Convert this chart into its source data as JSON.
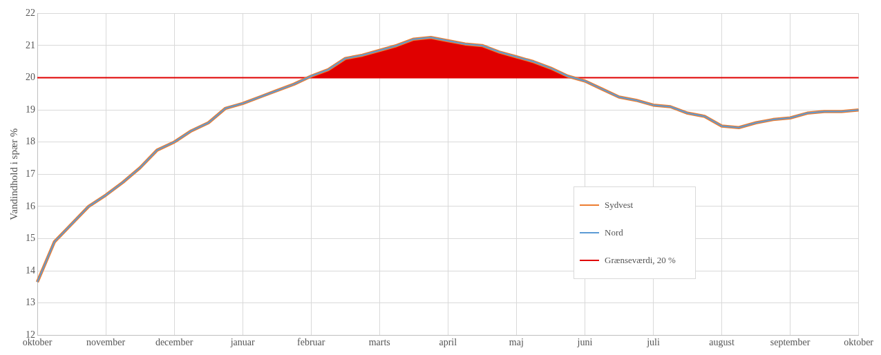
{
  "chart_data": {
    "type": "line",
    "ylabel": "Vandindhold i spær %",
    "categories": [
      "oktober",
      null,
      null,
      null,
      "november",
      null,
      null,
      null,
      "december",
      null,
      null,
      null,
      "januar",
      null,
      null,
      null,
      "februar",
      null,
      null,
      null,
      "marts",
      null,
      null,
      null,
      "april",
      null,
      null,
      null,
      "maj",
      null,
      null,
      null,
      "juni",
      null,
      null,
      null,
      "juli",
      null,
      null,
      null,
      "august",
      null,
      null,
      null,
      "september",
      null,
      null,
      null,
      "oktober"
    ],
    "series": [
      {
        "name": "Sydvest",
        "color": "#ed7d31",
        "values": [
          13.65,
          14.9,
          15.45,
          16.0,
          16.35,
          16.75,
          17.2,
          17.75,
          18.0,
          18.35,
          18.6,
          19.05,
          19.2,
          19.4,
          19.6,
          19.8,
          20.05,
          20.25,
          20.6,
          20.7,
          20.85,
          21.0,
          21.2,
          21.25,
          21.15,
          21.05,
          21.0,
          20.8,
          20.65,
          20.5,
          20.3,
          20.05,
          19.9,
          19.65,
          19.4,
          19.3,
          19.15,
          19.1,
          18.9,
          18.8,
          18.5,
          18.45,
          18.6,
          18.7,
          18.75,
          18.9,
          18.95,
          18.95,
          19.0
        ]
      },
      {
        "name": "Nord",
        "color": "#5b9bd5",
        "values": [
          13.65,
          14.9,
          15.45,
          16.0,
          16.35,
          16.75,
          17.2,
          17.75,
          18.0,
          18.35,
          18.6,
          19.05,
          19.2,
          19.4,
          19.6,
          19.8,
          20.05,
          20.25,
          20.6,
          20.7,
          20.85,
          21.0,
          21.2,
          21.25,
          21.15,
          21.05,
          21.0,
          20.8,
          20.65,
          20.5,
          20.3,
          20.05,
          19.9,
          19.65,
          19.4,
          19.3,
          19.15,
          19.1,
          18.9,
          18.8,
          18.5,
          18.45,
          18.6,
          18.7,
          18.75,
          18.9,
          18.95,
          18.95,
          19.0
        ]
      }
    ],
    "ref_lines": [
      {
        "axis": "y",
        "value": 20,
        "label": "Grænseværdi, 20 %",
        "color": "#e00000"
      }
    ],
    "ylim": [
      12,
      22
    ],
    "yticks": [
      12,
      13,
      14,
      15,
      16,
      17,
      18,
      19,
      20,
      21,
      22
    ],
    "grid": true,
    "legend": "right",
    "marker": "none",
    "line_style": "solid"
  }
}
